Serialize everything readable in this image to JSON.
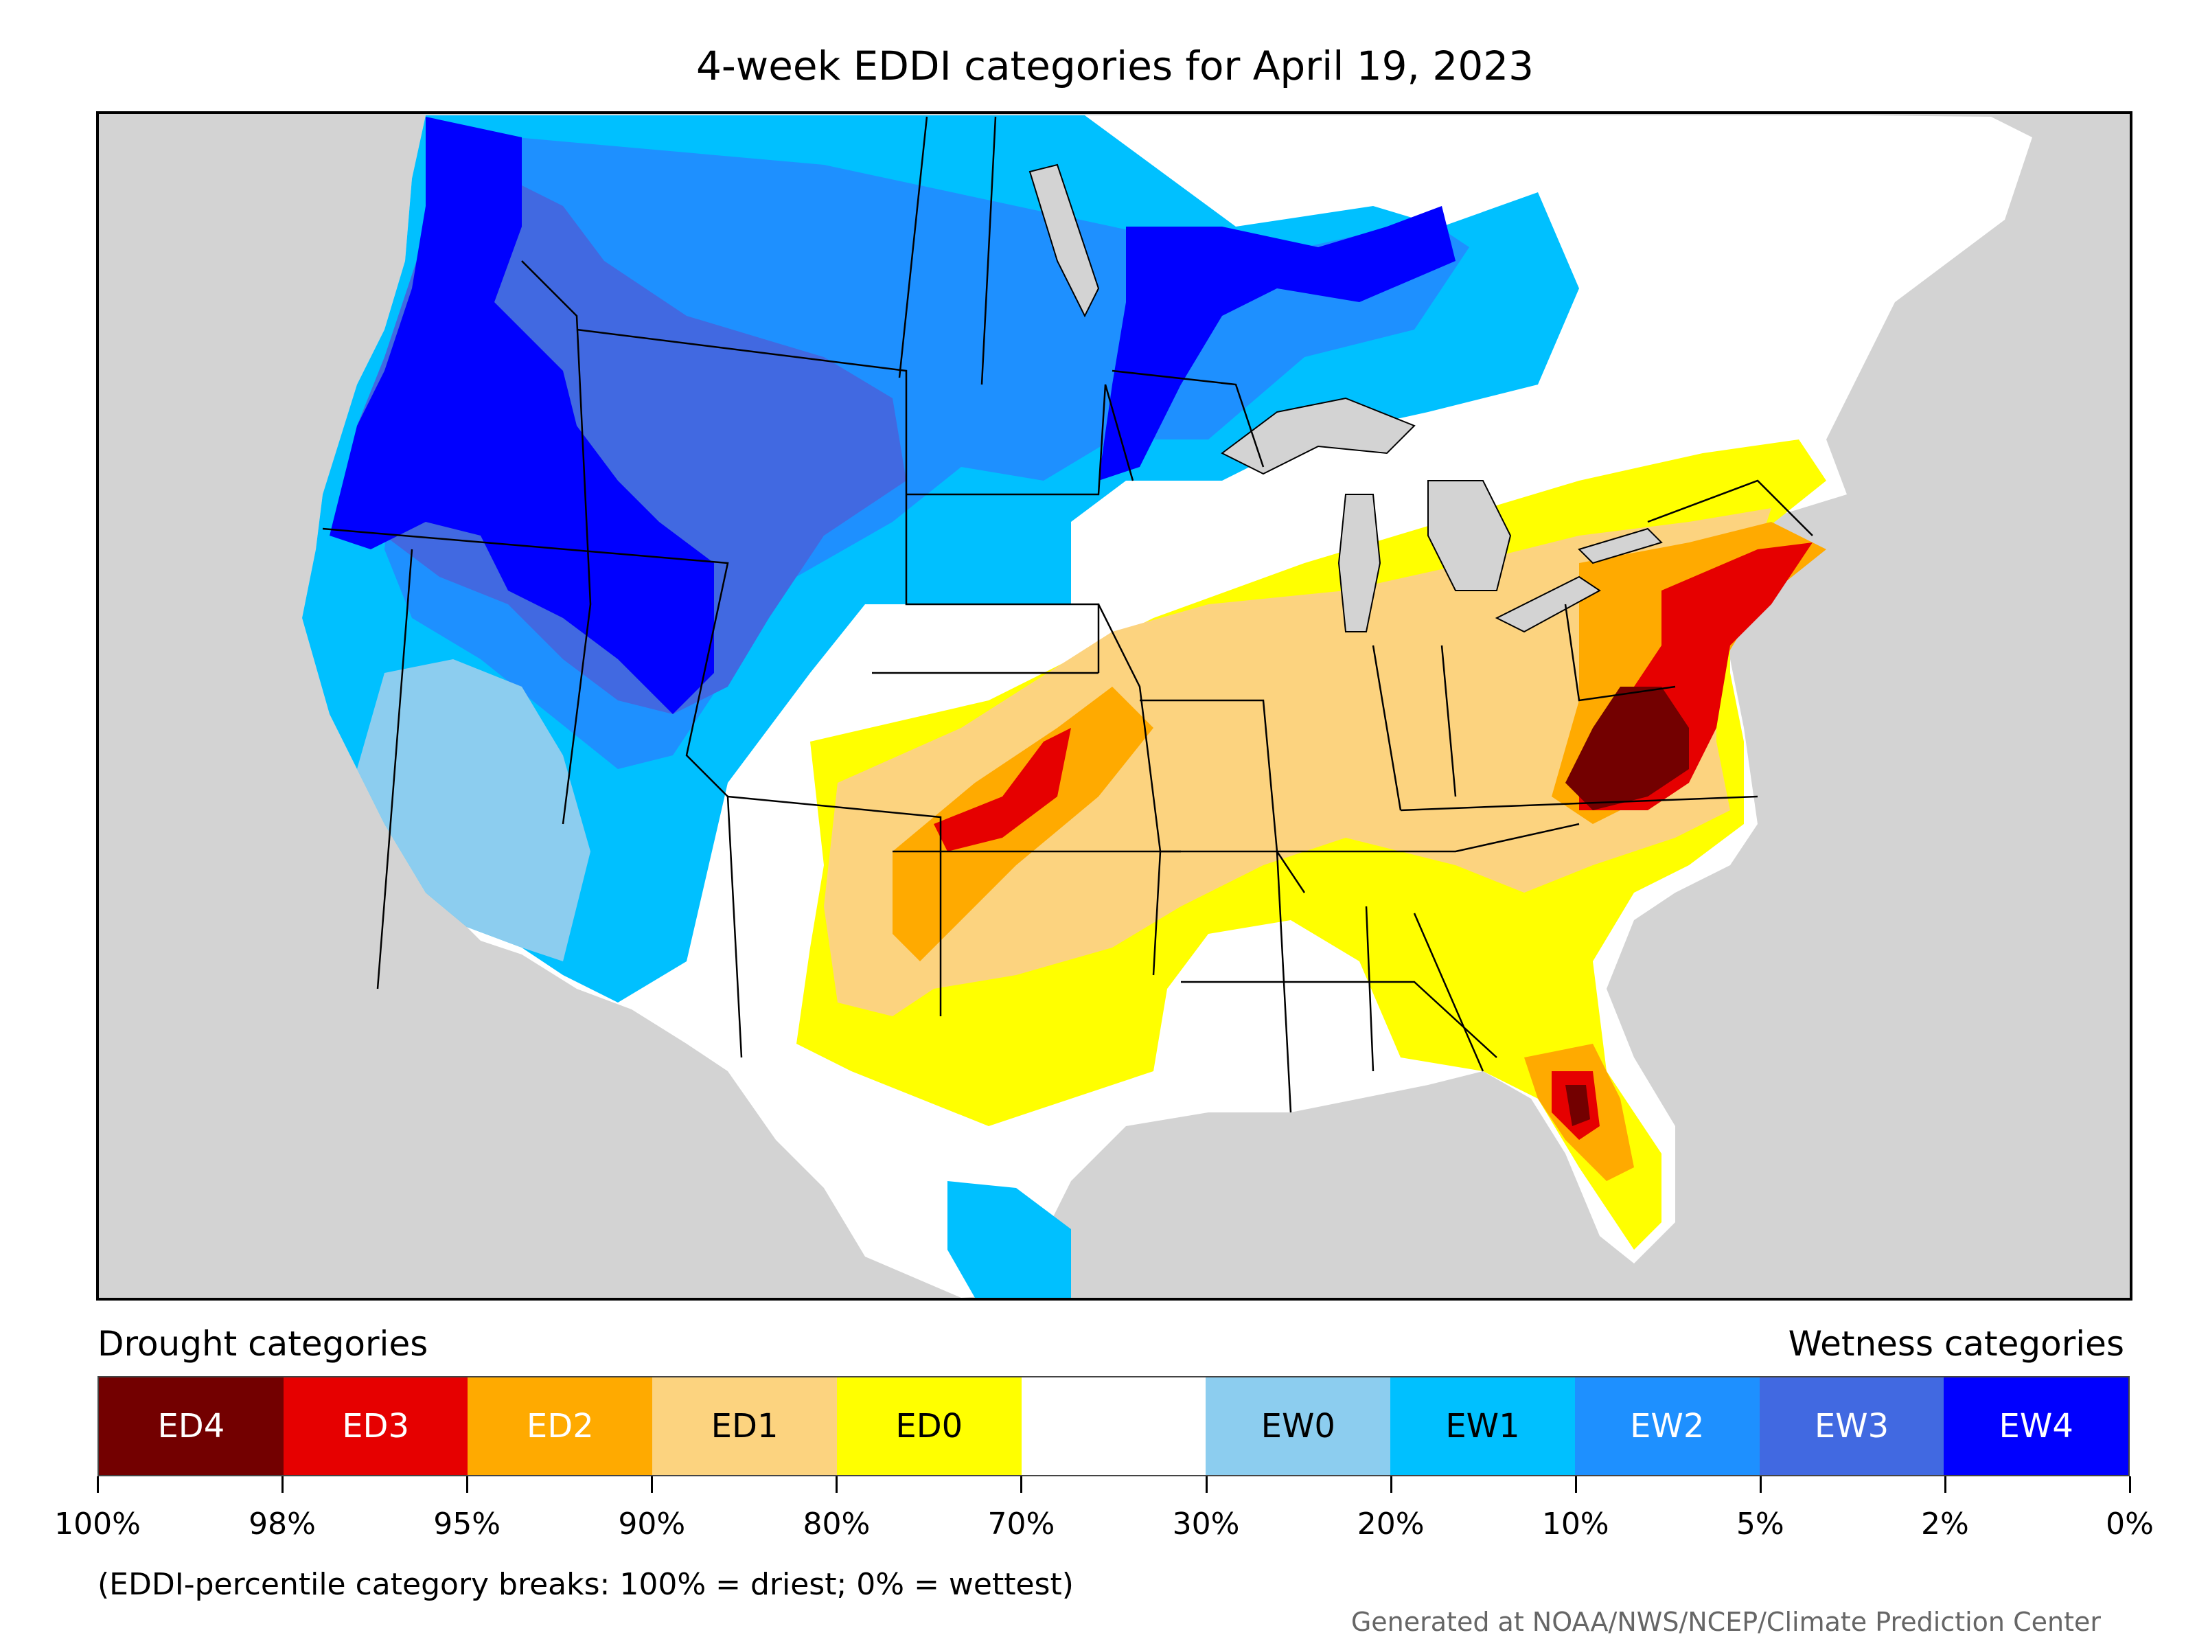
{
  "title": "4-week EDDI categories for April 19, 2023",
  "legend": {
    "drought_label": "Drought categories",
    "wetness_label": "Wetness categories",
    "categories": [
      {
        "label": "ED4",
        "color": "#730000",
        "text_color": "#ffffff"
      },
      {
        "label": "ED3",
        "color": "#e60000",
        "text_color": "#ffffff"
      },
      {
        "label": "ED2",
        "color": "#ffaa00",
        "text_color": "#ffffff"
      },
      {
        "label": "ED1",
        "color": "#fcd37f",
        "text_color": "#000000"
      },
      {
        "label": "ED0",
        "color": "#ffff00",
        "text_color": "#000000"
      },
      {
        "label": "",
        "color": "#ffffff",
        "text_color": "#000000"
      },
      {
        "label": "EW0",
        "color": "#8ccdef",
        "text_color": "#000000"
      },
      {
        "label": "EW1",
        "color": "#00c0ff",
        "text_color": "#000000"
      },
      {
        "label": "EW2",
        "color": "#1e90ff",
        "text_color": "#ffffff"
      },
      {
        "label": "EW3",
        "color": "#4169e1",
        "text_color": "#ffffff"
      },
      {
        "label": "EW4",
        "color": "#0000ff",
        "text_color": "#ffffff"
      }
    ],
    "breaks": [
      "100%",
      "98%",
      "95%",
      "90%",
      "80%",
      "70%",
      "30%",
      "20%",
      "10%",
      "5%",
      "2%",
      "0%"
    ]
  },
  "note": "(EDDI-percentile category breaks: 100% = driest; 0% = wettest)",
  "credit": "Generated at NOAA/NWS/NCEP/Climate Prediction Center",
  "map": {
    "background_color": "#d3d3d3",
    "region_colors": {
      "ew4": "#0000ff",
      "ew3": "#4169e1",
      "ew2": "#1e90ff",
      "ew1": "#00c0ff",
      "ew0": "#8ccdef",
      "ed0": "#ffff00",
      "ed1": "#fcd37f",
      "ed2": "#ffaa00",
      "ed3": "#e60000",
      "ed4": "#730000",
      "neutral": "#ffffff",
      "water": "#d3d3d3"
    }
  }
}
